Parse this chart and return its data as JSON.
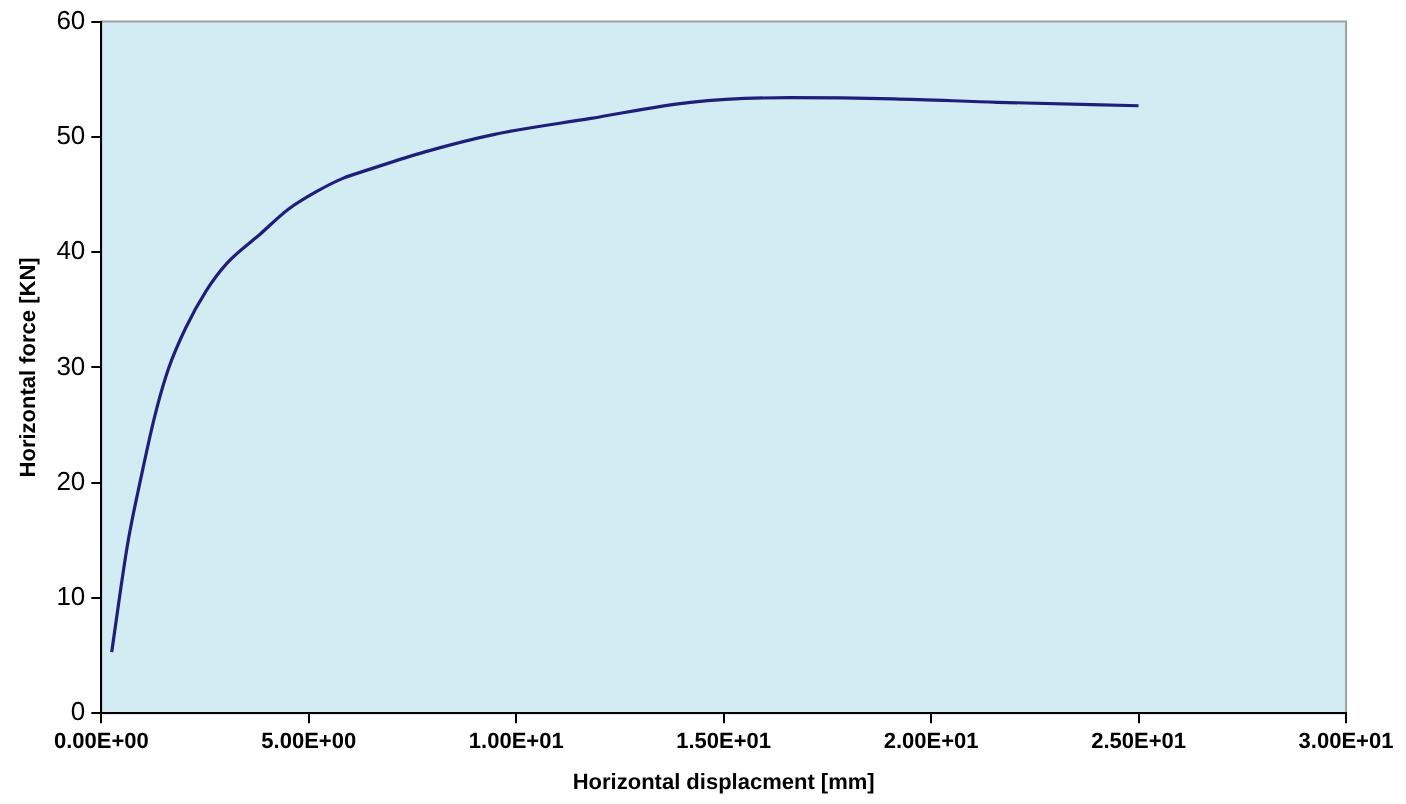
{
  "chart_data": {
    "type": "line",
    "xlabel": "Horizontal displacment [mm]",
    "ylabel": "Horizontal force [KN]",
    "xlim": [
      0,
      30
    ],
    "ylim": [
      0,
      60
    ],
    "xticks": [
      {
        "value": 0,
        "label": "0.00E+00"
      },
      {
        "value": 5,
        "label": "5.00E+00"
      },
      {
        "value": 10,
        "label": "1.00E+01"
      },
      {
        "value": 15,
        "label": "1.50E+01"
      },
      {
        "value": 20,
        "label": "2.00E+01"
      },
      {
        "value": 25,
        "label": "2.50E+01"
      },
      {
        "value": 30,
        "label": "3.00E+01"
      }
    ],
    "yticks": [
      0,
      10,
      20,
      30,
      40,
      50,
      60
    ],
    "grid": false,
    "legend": false,
    "marker": "none",
    "line_style": "solid",
    "series": [
      {
        "color": "#1f1f7a",
        "x": [
          0.25,
          0.63,
          0.96,
          1.29,
          1.62,
          2.03,
          2.52,
          3.02,
          3.84,
          4.5,
          5.16,
          5.82,
          6.48,
          7.8,
          9.45,
          11.8,
          14.2,
          16.6,
          19.1,
          21.6,
          25
        ],
        "values": [
          5.3,
          14.6,
          20.5,
          25.8,
          29.9,
          33.4,
          36.6,
          39.0,
          41.6,
          43.7,
          45.2,
          46.4,
          47.2,
          48.7,
          50.2,
          51.6,
          53.0,
          53.4,
          53.3,
          53.0,
          52.7
        ]
      }
    ]
  }
}
